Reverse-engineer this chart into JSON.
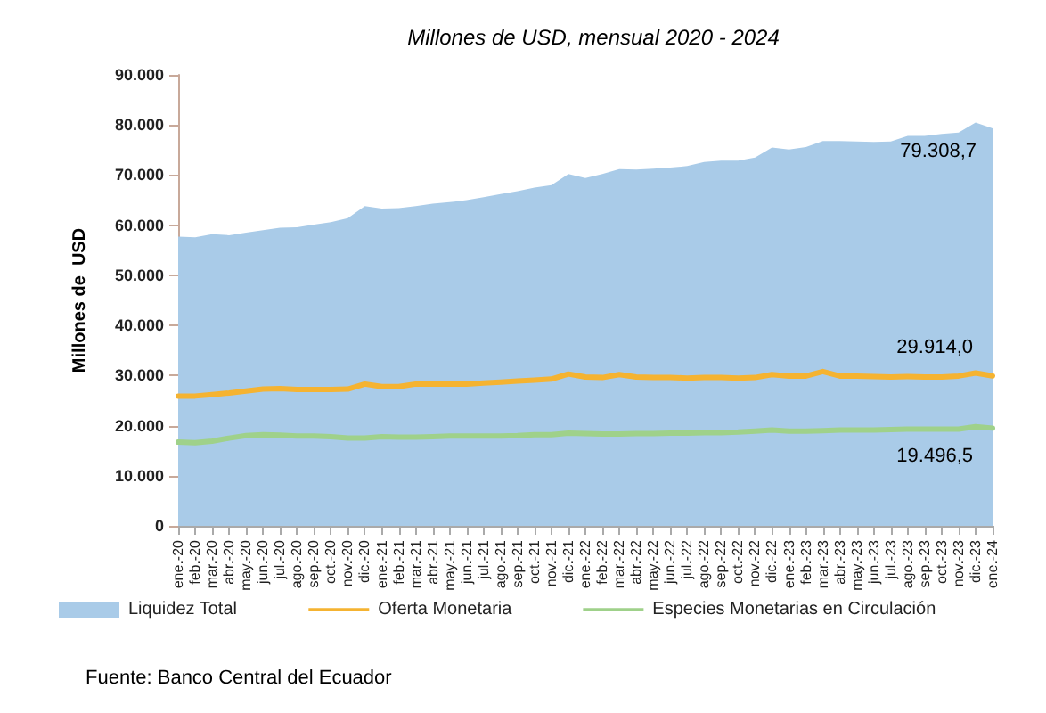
{
  "chart_data": {
    "type": "area",
    "title": "Millones de USD, mensual 2020 - 2024",
    "ylabel": "Millones de  USD",
    "categories": [
      "ene.-20",
      "feb.-20",
      "mar.-20",
      "abr.-20",
      "may.-20",
      "jun.-20",
      "jul.-20",
      "ago.-20",
      "sep.-20",
      "oct.-20",
      "nov.-20",
      "dic.-20",
      "ene.-21",
      "feb.-21",
      "mar.-21",
      "abr.-21",
      "may.-21",
      "jun.-21",
      "jul.-21",
      "ago.-21",
      "sep.-21",
      "oct.-21",
      "nov.-21",
      "dic.-21",
      "ene.-22",
      "feb.-22",
      "mar.-22",
      "abr.-22",
      "may.-22",
      "jun.-22",
      "jul.-22",
      "ago.-22",
      "sep.-22",
      "oct.-22",
      "nov.-22",
      "dic.-22",
      "ene.-23",
      "feb.-23",
      "mar.-23",
      "abr.-23",
      "may.-23",
      "jun.-23",
      "jul.-23",
      "ago.-23",
      "sep.-23",
      "oct.-23",
      "nov.-23",
      "dic.-23",
      "ene.-24"
    ],
    "series": [
      {
        "name": "Liquidez Total",
        "type": "area",
        "color": "#a9cbe8",
        "values": [
          57700,
          57600,
          58200,
          58000,
          58500,
          59000,
          59500,
          59600,
          60100,
          60600,
          61400,
          63800,
          63300,
          63400,
          63800,
          64300,
          64600,
          65000,
          65600,
          66200,
          66800,
          67500,
          68000,
          70200,
          69400,
          70200,
          71200,
          71100,
          71300,
          71500,
          71800,
          72600,
          72900,
          72900,
          73500,
          75500,
          75100,
          75600,
          76800,
          76800,
          76700,
          76600,
          76700,
          77800,
          77800,
          78200,
          78500,
          80500,
          79308.7
        ],
        "value_labels": [
          null,
          null,
          null,
          null,
          null,
          null,
          null,
          null,
          null,
          null,
          null,
          null,
          null,
          null,
          null,
          null,
          null,
          null,
          null,
          null,
          null,
          null,
          null,
          null,
          null,
          null,
          null,
          null,
          null,
          null,
          null,
          null,
          null,
          null,
          null,
          null,
          null,
          null,
          null,
          null,
          null,
          null,
          null,
          null,
          null,
          null,
          null,
          null,
          "79.308,7"
        ]
      },
      {
        "name": "Oferta Monetaria",
        "type": "line",
        "color": "#f5b331",
        "values": [
          25900,
          25900,
          26200,
          26500,
          26900,
          27300,
          27400,
          27200,
          27200,
          27200,
          27300,
          28300,
          27800,
          27800,
          28300,
          28300,
          28300,
          28300,
          28500,
          28700,
          28900,
          29100,
          29300,
          30300,
          29700,
          29600,
          30200,
          29700,
          29600,
          29600,
          29500,
          29600,
          29600,
          29500,
          29600,
          30200,
          29900,
          29900,
          30800,
          29900,
          29900,
          29800,
          29700,
          29800,
          29700,
          29700,
          29900,
          30500,
          29914.0
        ],
        "value_labels": [
          null,
          null,
          null,
          null,
          null,
          null,
          null,
          null,
          null,
          null,
          null,
          null,
          null,
          null,
          null,
          null,
          null,
          null,
          null,
          null,
          null,
          null,
          null,
          null,
          null,
          null,
          null,
          null,
          null,
          null,
          null,
          null,
          null,
          null,
          null,
          null,
          null,
          null,
          null,
          null,
          null,
          null,
          null,
          null,
          null,
          null,
          null,
          null,
          "29.914,0"
        ]
      },
      {
        "name": "Especies Monetarias en Circulación",
        "type": "line",
        "color": "#9fd18a",
        "values": [
          16700,
          16600,
          16900,
          17500,
          18000,
          18200,
          18100,
          17900,
          17900,
          17800,
          17500,
          17500,
          17800,
          17700,
          17700,
          17800,
          17900,
          17900,
          17900,
          17900,
          18000,
          18200,
          18200,
          18500,
          18400,
          18300,
          18300,
          18400,
          18400,
          18500,
          18500,
          18600,
          18600,
          18700,
          18900,
          19100,
          18900,
          18900,
          19000,
          19100,
          19100,
          19100,
          19200,
          19300,
          19300,
          19300,
          19300,
          19800,
          19496.5
        ],
        "value_labels": [
          null,
          null,
          null,
          null,
          null,
          null,
          null,
          null,
          null,
          null,
          null,
          null,
          null,
          null,
          null,
          null,
          null,
          null,
          null,
          null,
          null,
          null,
          null,
          null,
          null,
          null,
          null,
          null,
          null,
          null,
          null,
          null,
          null,
          null,
          null,
          null,
          null,
          null,
          null,
          null,
          null,
          null,
          null,
          null,
          null,
          null,
          null,
          null,
          "19.496,5"
        ]
      }
    ],
    "ylim": [
      0,
      90000
    ],
    "yticks": [
      {
        "value": 0,
        "label": "0"
      },
      {
        "value": 10000,
        "label": "10.000"
      },
      {
        "value": 20000,
        "label": "20.000"
      },
      {
        "value": 30000,
        "label": "30.000"
      },
      {
        "value": 40000,
        "label": "40.000"
      },
      {
        "value": 50000,
        "label": "50.000"
      },
      {
        "value": 60000,
        "label": "60.000"
      },
      {
        "value": 70000,
        "label": "70.000"
      },
      {
        "value": 80000,
        "label": "80.000"
      },
      {
        "value": 90000,
        "label": "90.000"
      }
    ],
    "grid": false,
    "legend": "bottom",
    "marker": "none",
    "line_style": "solid",
    "annotations": [
      "Fuente: Banco Central del Ecuador"
    ]
  }
}
